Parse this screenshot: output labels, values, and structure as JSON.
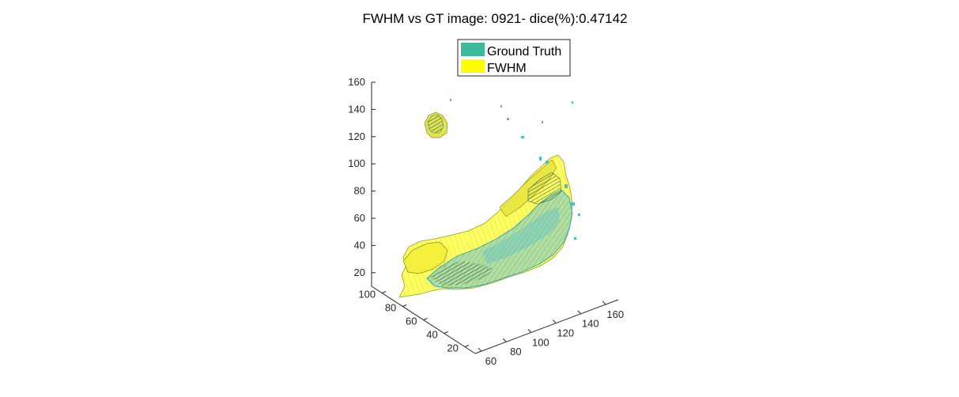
{
  "chart_data": {
    "type": "3d-isosurface",
    "title": "FWHM vs GT image: 0921- dice(%):0.47142",
    "legend": {
      "placement": "top-center",
      "entries": [
        {
          "label": "Ground Truth",
          "color": "#3cb89b"
        },
        {
          "label": "FWHM",
          "color": "#ffff00"
        }
      ]
    },
    "axes": {
      "z": {
        "ticks": [
          "20",
          "40",
          "60",
          "80",
          "100",
          "120",
          "140",
          "160"
        ],
        "lim": [
          10,
          160
        ]
      },
      "y_left": {
        "ticks": [
          "20",
          "40",
          "60",
          "80",
          "100"
        ],
        "lim": [
          10,
          110
        ]
      },
      "x_right": {
        "ticks": [
          "60",
          "80",
          "100",
          "120",
          "140",
          "160"
        ],
        "lim": [
          55,
          170
        ]
      }
    },
    "series": [
      {
        "name": "Ground Truth",
        "color": "#3cb89b",
        "edge_color": "#1a9bb0"
      },
      {
        "name": "FWHM",
        "color": "#ffff00",
        "edge_color": "#a8a020"
      }
    ],
    "grid": false
  }
}
